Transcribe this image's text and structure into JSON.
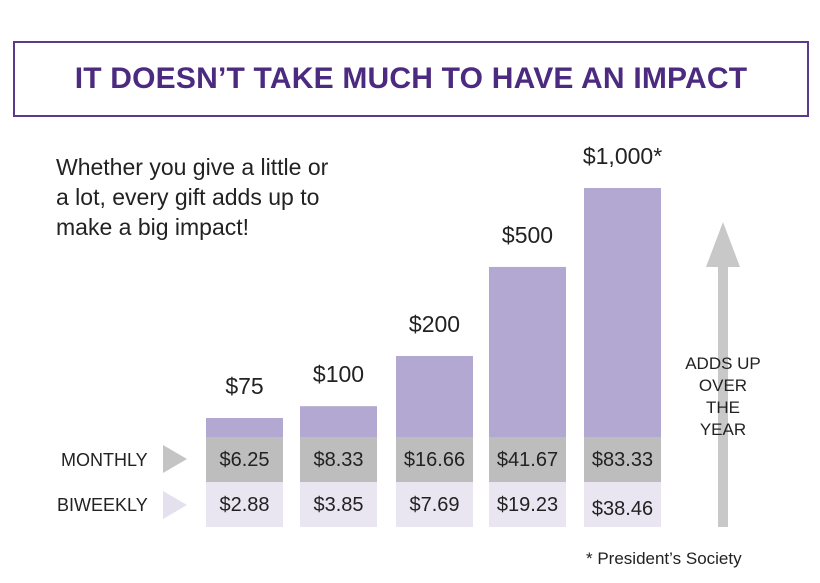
{
  "title": "IT DOESN’T TAKE MUCH TO HAVE AN IMPACT",
  "intro_lines": [
    "Whether you give a little or",
    "a lot, every gift adds up to",
    "make a big impact!"
  ],
  "row_labels": {
    "monthly": "MONTHLY",
    "biweekly": "BIWEEKLY"
  },
  "side_label_lines": [
    "ADDS UP",
    "OVER",
    "THE",
    "YEAR"
  ],
  "footnote": "* President’s Society",
  "colors": {
    "title": "#4b2a7f",
    "bar_top": "#b3a8d1",
    "monthly_band": "#bdbdbd",
    "biweekly_band": "#e9e6f2",
    "arrow": "#c8c8c8",
    "monthly_row_arrow": "#c4c4c4",
    "biweekly_row_arrow": "#e4e0ee"
  },
  "chart_data": {
    "type": "bar",
    "title": "IT DOESN’T TAKE MUCH TO HAVE AN IMPACT",
    "categories": [
      "$75",
      "$100",
      "$200",
      "$500",
      "$1,000*"
    ],
    "values": [
      75,
      100,
      200,
      500,
      1000
    ],
    "series": [
      {
        "name": "MONTHLY",
        "values": [
          "$6.25",
          "$8.33",
          "$16.66",
          "$41.67",
          "$83.33"
        ]
      },
      {
        "name": "BIWEEKLY",
        "values": [
          "$2.88",
          "$3.85",
          "$7.69",
          "$19.23",
          "$38.46"
        ]
      }
    ],
    "xlabel": "",
    "ylabel": "",
    "ylim": [
      0,
      1000
    ]
  }
}
